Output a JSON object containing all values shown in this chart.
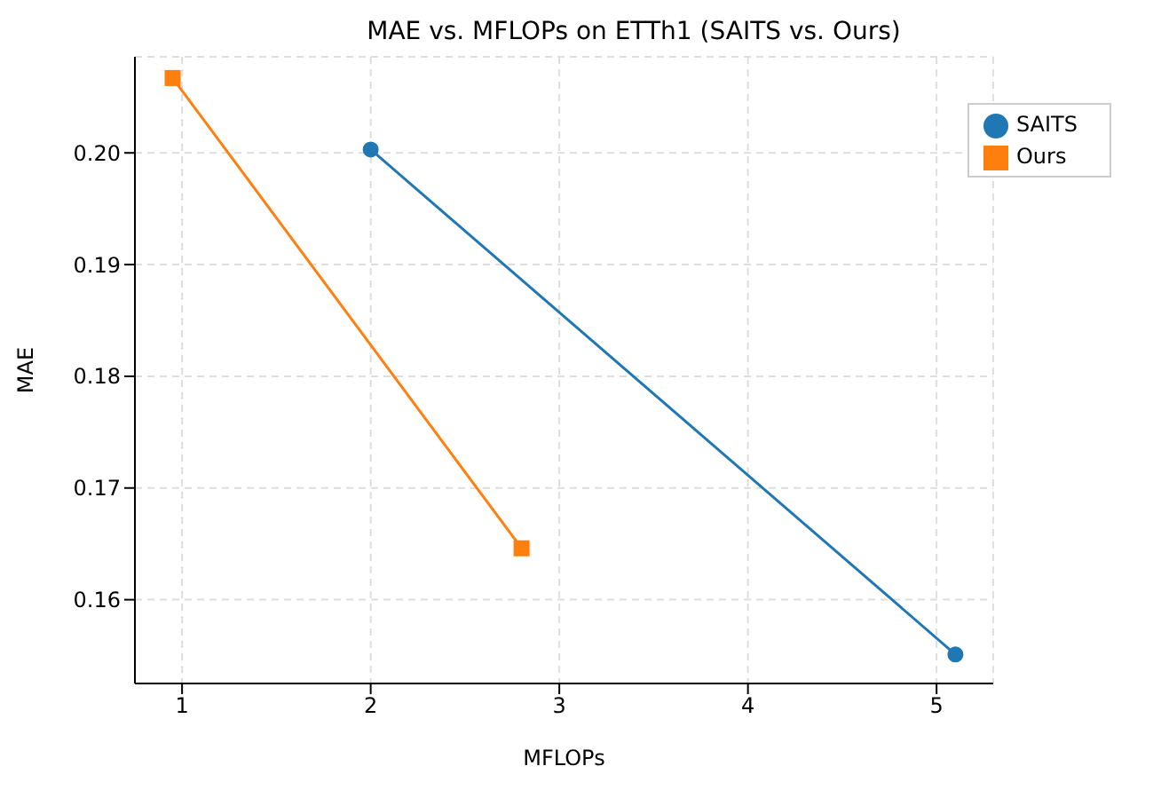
{
  "chart_data": {
    "type": "line",
    "title": "MAE vs. MFLOPs on ETTh1 (SAITS vs. Ours)",
    "xlabel": "MFLOPs",
    "ylabel": "MAE",
    "series": [
      {
        "name": "SAITS",
        "color": "#1f77b4",
        "x": [
          2.0,
          5.1
        ],
        "values": [
          0.2003,
          0.1551
        ],
        "marker": "circle"
      },
      {
        "name": "Ours",
        "color": "#ff7f0e",
        "x": [
          0.95,
          2.8
        ],
        "values": [
          0.2067,
          0.1646
        ],
        "marker": "square"
      }
    ],
    "xlim": [
      0.75,
      5.3
    ],
    "xticks": [
      1,
      2,
      3,
      4,
      5
    ],
    "ylim": [
      0.1525,
      0.2086
    ],
    "yticks": [
      0.16,
      0.17,
      0.18,
      0.19,
      {
        "value": 0.2,
        "label": "0.20"
      }
    ],
    "grid": true,
    "legend": "top right",
    "line_style": "solid"
  }
}
